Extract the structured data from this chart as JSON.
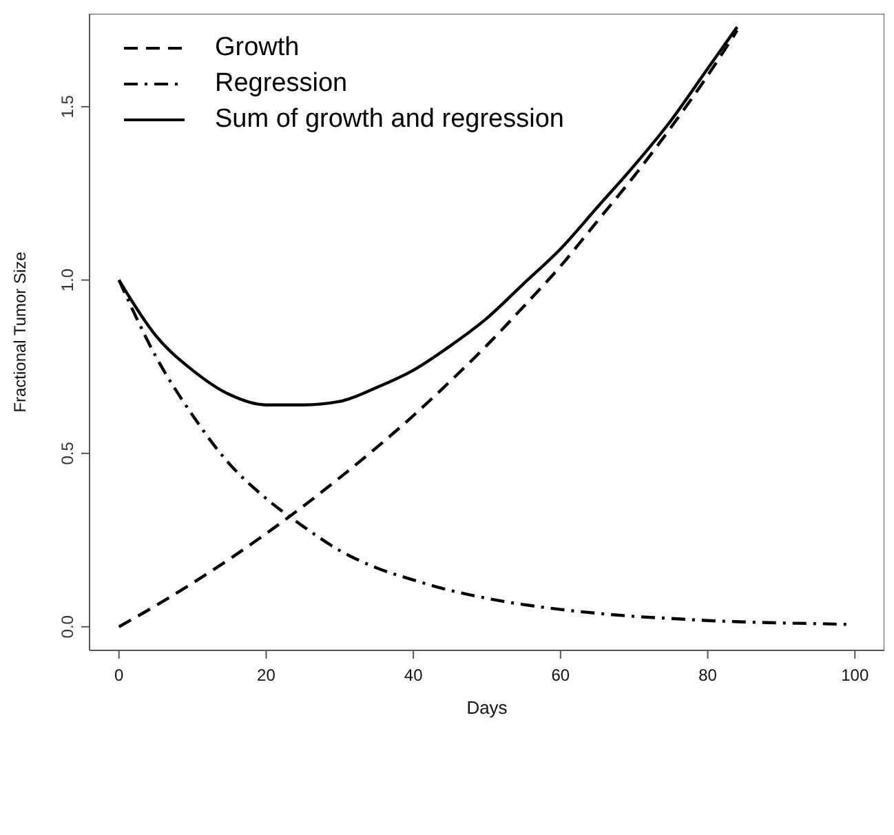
{
  "chart_data": {
    "type": "line",
    "xlabel": "Days",
    "ylabel": "Fractional Tumor Size",
    "xlim": [
      -4,
      104
    ],
    "ylim": [
      -0.068,
      1.768
    ],
    "xticks": [
      0,
      20,
      40,
      60,
      80,
      100
    ],
    "yticks": [
      {
        "value": 0,
        "label": "0.0"
      },
      {
        "value": 0.5,
        "label": "0.5"
      },
      {
        "value": 1,
        "label": "1.0"
      },
      {
        "value": 1.5,
        "label": "1.5"
      }
    ],
    "grid": false,
    "legend": "top left",
    "marker": "none",
    "series": [
      {
        "name": "Growth",
        "color": "#000000",
        "line_style": "dashed",
        "x": [
          0,
          5,
          10,
          15,
          20,
          25,
          30,
          35,
          40,
          45,
          50,
          55,
          60,
          65,
          70,
          75,
          80,
          84
        ],
        "values": [
          0,
          0.061,
          0.126,
          0.195,
          0.269,
          0.347,
          0.43,
          0.517,
          0.609,
          0.708,
          0.812,
          0.924,
          1.04,
          1.17,
          1.3,
          1.44,
          1.59,
          1.72
        ]
      },
      {
        "name": "Regression",
        "color": "#000000",
        "line_style": "dashdot",
        "x": [
          0,
          5,
          10,
          15,
          20,
          25,
          30,
          35,
          40,
          45,
          50,
          55,
          60,
          65,
          70,
          75,
          80,
          85,
          90,
          95,
          99
        ],
        "values": [
          1,
          0.78,
          0.61,
          0.47,
          0.37,
          0.29,
          0.22,
          0.17,
          0.135,
          0.105,
          0.082,
          0.064,
          0.05,
          0.039,
          0.03,
          0.024,
          0.018,
          0.014,
          0.011,
          0.009,
          0.007
        ]
      },
      {
        "name": "Sum of growth and regression",
        "color": "#000000",
        "line_style": "solid",
        "x": [
          0,
          5,
          10,
          15,
          20,
          25,
          30,
          35,
          40,
          45,
          50,
          55,
          60,
          65,
          70,
          75,
          80,
          84
        ],
        "values": [
          1,
          0.84,
          0.74,
          0.67,
          0.64,
          0.64,
          0.65,
          0.69,
          0.74,
          0.81,
          0.89,
          0.99,
          1.09,
          1.21,
          1.33,
          1.46,
          1.61,
          1.73
        ]
      }
    ]
  }
}
